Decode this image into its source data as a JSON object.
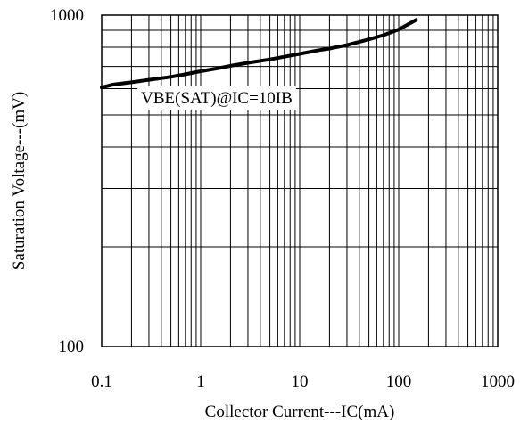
{
  "chart_data": {
    "type": "line",
    "title": "",
    "xlabel": "Collector Current---IC(mA)",
    "ylabel": "Saturation Voltage---(mV)",
    "xscale": "log",
    "yscale": "log",
    "xlim": [
      0.1,
      1000
    ],
    "ylim": [
      100,
      1000
    ],
    "grid": true,
    "x_tick_labels": [
      "0.1",
      "1",
      "10",
      "100",
      "1000"
    ],
    "y_tick_labels": [
      "100",
      "1000"
    ],
    "series": [
      {
        "name": "VBE(SAT)@IC=10IB",
        "color": "#000000",
        "x": [
          0.1,
          0.13,
          0.2,
          0.3,
          0.5,
          0.7,
          1,
          1.5,
          2,
          3,
          5,
          7,
          10,
          15,
          20,
          30,
          50,
          70,
          100,
          150
        ],
        "y": [
          605,
          617,
          627,
          638,
          651,
          663,
          677,
          691,
          703,
          718,
          735,
          749,
          764,
          782,
          793,
          812,
          845,
          870,
          905,
          967
        ]
      }
    ],
    "annotations": [
      {
        "text": "VBE(SAT)@IC=10IB",
        "x": 0.25,
        "y": 542
      }
    ]
  }
}
